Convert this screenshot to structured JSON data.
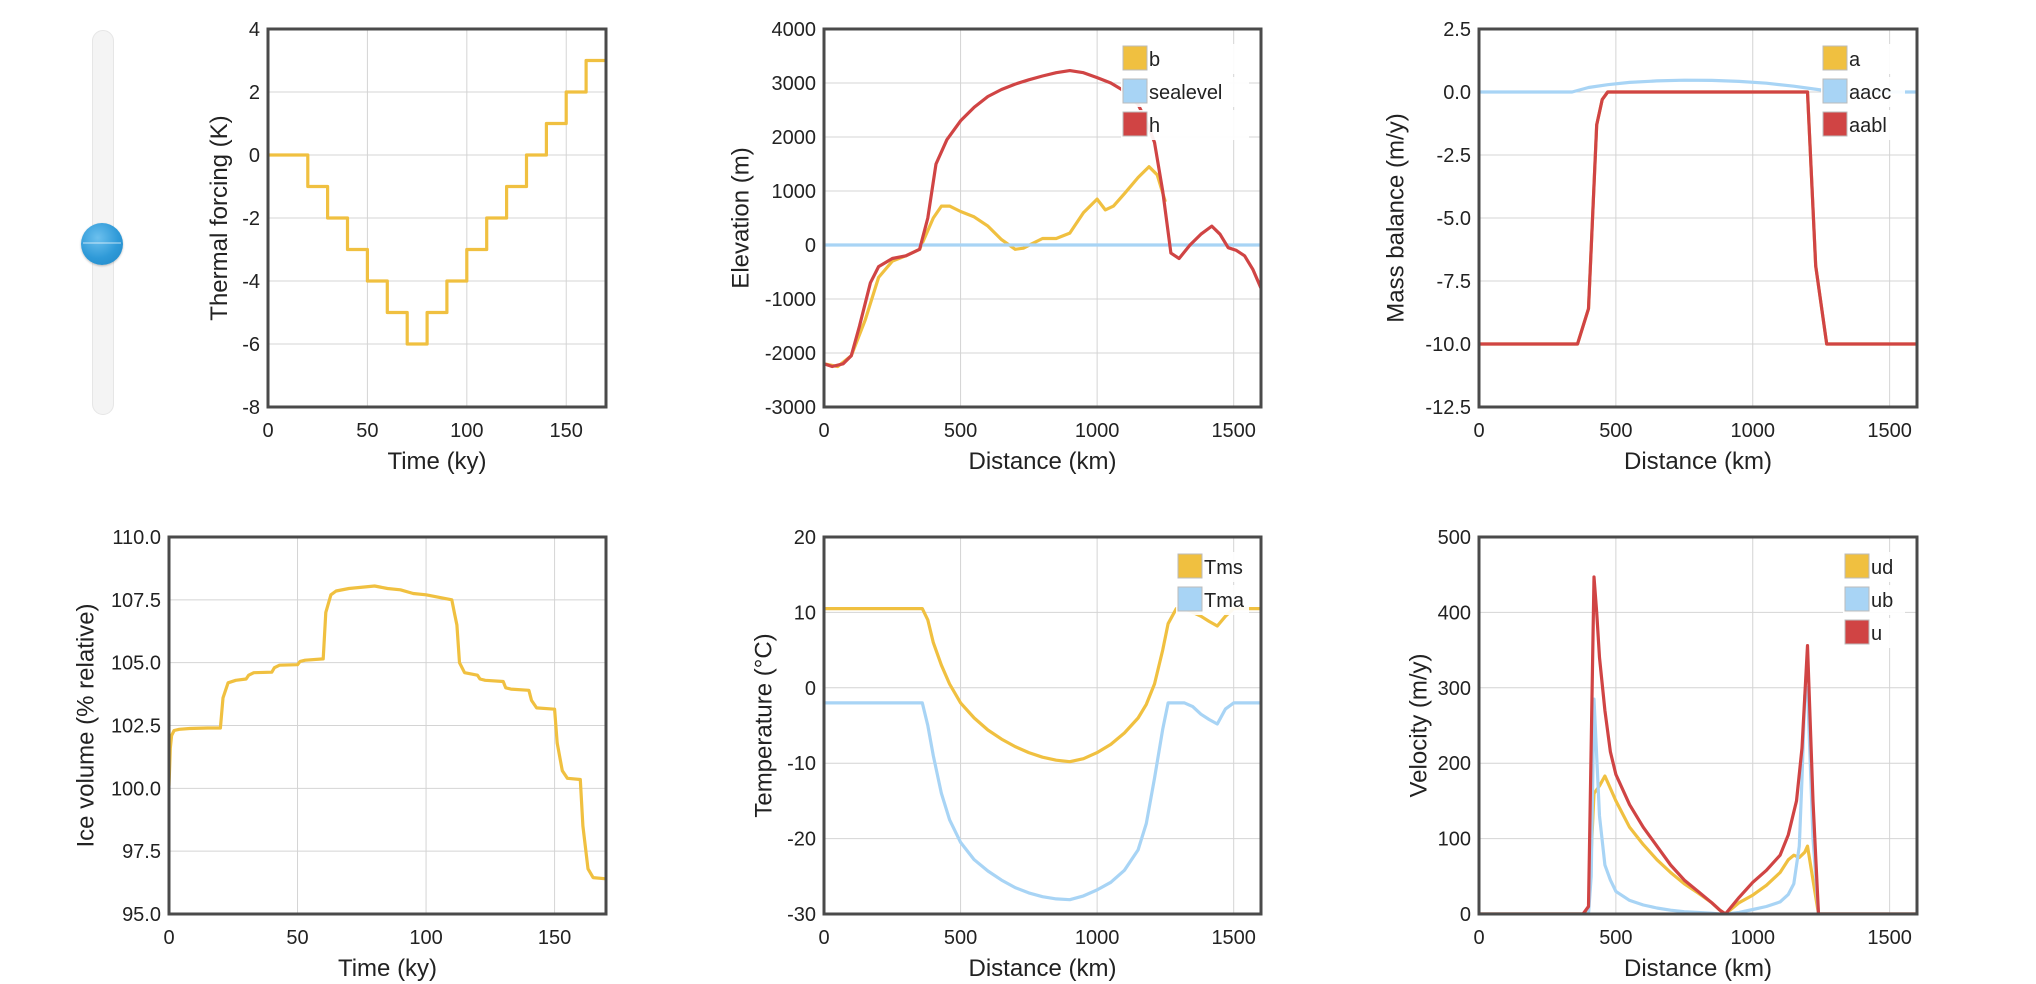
{
  "slider": {
    "value": 0.43
  },
  "chart_data": [
    {
      "type": "line",
      "xlabel": "Time (ky)",
      "ylabel": "Thermal forcing (K)",
      "xlim": [
        0,
        170
      ],
      "ylim": [
        -8,
        4
      ],
      "xticks": [
        0,
        50,
        100,
        150
      ],
      "yticks": [
        -8,
        -6,
        -4,
        -2,
        0,
        2,
        4
      ],
      "grid": true,
      "series": [
        {
          "name": "",
          "color": "#f0c040",
          "x": [
            0,
            20,
            20,
            30,
            30,
            40,
            40,
            50,
            50,
            60,
            60,
            70,
            70,
            80,
            80,
            90,
            90,
            100,
            100,
            110,
            110,
            120,
            120,
            130,
            130,
            140,
            140,
            150,
            150,
            160,
            160,
            170
          ],
          "y": [
            0,
            0,
            -1,
            -1,
            -2,
            -2,
            -3,
            -3,
            -4,
            -4,
            -5,
            -5,
            -6,
            -6,
            -5,
            -5,
            -4,
            -4,
            -3,
            -3,
            -2,
            -2,
            -1,
            -1,
            0,
            0,
            1,
            1,
            2,
            2,
            3,
            3
          ]
        }
      ]
    },
    {
      "type": "line",
      "xlabel": "Distance (km)",
      "ylabel": "Elevation (m)",
      "xlim": [
        0,
        1600
      ],
      "ylim": [
        -3000,
        4000
      ],
      "xticks": [
        0,
        500,
        1000,
        1500
      ],
      "yticks": [
        -3000,
        -2000,
        -1000,
        0,
        1000,
        2000,
        3000,
        4000
      ],
      "grid": true,
      "legend": "top-right",
      "series": [
        {
          "name": "b",
          "color": "#f0c040",
          "x": [
            0,
            50,
            100,
            150,
            200,
            250,
            300,
            350,
            400,
            430,
            460,
            500,
            550,
            600,
            650,
            700,
            730,
            760,
            800,
            850,
            900,
            950,
            1000,
            1030,
            1060,
            1100,
            1150,
            1190,
            1220,
            1250
          ],
          "y": [
            -2200,
            -2250,
            -2050,
            -1400,
            -600,
            -300,
            -200,
            -80,
            500,
            720,
            720,
            620,
            520,
            350,
            100,
            -80,
            -60,
            20,
            120,
            120,
            220,
            600,
            850,
            650,
            720,
            950,
            1250,
            1450,
            1300,
            800
          ]
        },
        {
          "name": "sealevel",
          "color": "#a8d4f5",
          "x": [
            0,
            1600
          ],
          "y": [
            0,
            0
          ]
        },
        {
          "name": "h",
          "color": "#d04444",
          "x": [
            0,
            30,
            70,
            100,
            130,
            170,
            200,
            250,
            300,
            350,
            380,
            410,
            450,
            500,
            550,
            600,
            650,
            700,
            750,
            800,
            850,
            900,
            950,
            1000,
            1050,
            1100,
            1150,
            1180,
            1210,
            1240,
            1270,
            1300,
            1340,
            1380,
            1420,
            1450,
            1480,
            1510,
            1540,
            1570,
            1600
          ],
          "y": [
            -2200,
            -2250,
            -2200,
            -2050,
            -1500,
            -700,
            -400,
            -250,
            -200,
            -80,
            500,
            1500,
            1950,
            2300,
            2550,
            2750,
            2880,
            2980,
            3060,
            3130,
            3190,
            3230,
            3190,
            3100,
            3000,
            2850,
            2600,
            2300,
            1900,
            1000,
            -150,
            -250,
            0,
            200,
            350,
            200,
            -50,
            -100,
            -200,
            -450,
            -800
          ]
        }
      ]
    },
    {
      "type": "line",
      "xlabel": "Distance (km)",
      "ylabel": "Mass balance (m/y)",
      "xlim": [
        0,
        1600
      ],
      "ylim": [
        -12.5,
        2.5
      ],
      "xticks": [
        0,
        500,
        1000,
        1500
      ],
      "yticks": [
        -12.5,
        -10.0,
        -7.5,
        -5.0,
        -2.5,
        0.0,
        2.5
      ],
      "grid": true,
      "legend": "top-right",
      "series": [
        {
          "name": "a",
          "color": "#f0c040",
          "x": [
            0,
            360,
            400,
            430,
            450,
            470,
            500,
            1200,
            1230,
            1270,
            1600
          ],
          "y": [
            -10,
            -10,
            -8.6,
            -1.3,
            -0.3,
            0,
            0,
            0,
            -6.9,
            -10,
            -10
          ]
        },
        {
          "name": "aacc",
          "color": "#a8d4f5",
          "x": [
            0,
            340,
            400,
            470,
            550,
            650,
            750,
            850,
            950,
            1050,
            1150,
            1250,
            1350,
            1450,
            1500,
            1600
          ],
          "y": [
            0,
            0,
            0.18,
            0.29,
            0.38,
            0.44,
            0.47,
            0.46,
            0.42,
            0.35,
            0.23,
            0.08,
            0,
            0,
            0,
            0
          ]
        },
        {
          "name": "aabl",
          "color": "#d04444",
          "x": [
            0,
            360,
            400,
            430,
            450,
            470,
            500,
            1200,
            1230,
            1270,
            1600
          ],
          "y": [
            -10,
            -10,
            -8.6,
            -1.3,
            -0.3,
            0,
            0,
            0,
            -6.9,
            -10,
            -10
          ]
        }
      ]
    },
    {
      "type": "line",
      "xlabel": "Time (ky)",
      "ylabel": "Ice volume (% relative)",
      "xlim": [
        0,
        170
      ],
      "ylim": [
        95.0,
        110.0
      ],
      "xticks": [
        0,
        50,
        100,
        150
      ],
      "yticks": [
        95.0,
        97.5,
        100.0,
        102.5,
        105.0,
        107.5,
        110.0
      ],
      "grid": true,
      "series": [
        {
          "name": "",
          "color": "#f0c040",
          "x": [
            0,
            0.5,
            1,
            2,
            4,
            8,
            15,
            20,
            21,
            23,
            26,
            30,
            31,
            33,
            40,
            41,
            43,
            50,
            51,
            53,
            60,
            61,
            63,
            65,
            70,
            80,
            85,
            90,
            95,
            100,
            105,
            110,
            111,
            112,
            113,
            115,
            120,
            121,
            123,
            130,
            131,
            133,
            140,
            141,
            143,
            150,
            151,
            153,
            155,
            160,
            161,
            163,
            165,
            170
          ],
          "y": [
            100.1,
            101.6,
            102.1,
            102.3,
            102.35,
            102.38,
            102.4,
            102.4,
            103.6,
            104.2,
            104.3,
            104.35,
            104.5,
            104.6,
            104.62,
            104.8,
            104.9,
            104.92,
            105.05,
            105.1,
            105.15,
            107.0,
            107.7,
            107.85,
            107.95,
            108.05,
            107.95,
            107.9,
            107.75,
            107.7,
            107.6,
            107.5,
            107.0,
            106.5,
            105.0,
            104.6,
            104.5,
            104.35,
            104.3,
            104.25,
            104.0,
            103.95,
            103.9,
            103.5,
            103.2,
            103.15,
            101.8,
            100.7,
            100.4,
            100.35,
            98.5,
            96.8,
            96.45,
            96.4
          ]
        }
      ]
    },
    {
      "type": "line",
      "xlabel": "Distance (km)",
      "ylabel": "Temperature (°C)",
      "xlim": [
        0,
        1600
      ],
      "ylim": [
        -30,
        20
      ],
      "xticks": [
        0,
        500,
        1000,
        1500
      ],
      "yticks": [
        -30,
        -20,
        -10,
        0,
        10,
        20
      ],
      "grid": true,
      "legend": "top-right",
      "series": [
        {
          "name": "Tms",
          "color": "#f0c040",
          "x": [
            0,
            360,
            380,
            400,
            430,
            460,
            500,
            550,
            600,
            650,
            700,
            750,
            800,
            850,
            900,
            950,
            1000,
            1050,
            1100,
            1150,
            1180,
            1210,
            1240,
            1260,
            1290,
            1320,
            1350,
            1380,
            1410,
            1440,
            1470,
            1500,
            1530,
            1600
          ],
          "y": [
            10.5,
            10.5,
            9,
            6,
            3,
            0.5,
            -2,
            -4,
            -5.6,
            -6.8,
            -7.8,
            -8.6,
            -9.2,
            -9.6,
            -9.8,
            -9.4,
            -8.6,
            -7.5,
            -6,
            -4,
            -2.2,
            0.5,
            5,
            8.5,
            10.5,
            10.5,
            10,
            9.5,
            8.8,
            8.2,
            9.5,
            10.5,
            10.5,
            10.5
          ]
        },
        {
          "name": "Tma",
          "color": "#a8d4f5",
          "x": [
            0,
            360,
            380,
            400,
            430,
            460,
            500,
            550,
            600,
            650,
            700,
            750,
            800,
            850,
            900,
            950,
            1000,
            1050,
            1100,
            1150,
            1180,
            1210,
            1240,
            1260,
            1290,
            1320,
            1350,
            1380,
            1410,
            1440,
            1470,
            1500,
            1530,
            1600
          ],
          "y": [
            -2,
            -2,
            -5,
            -9,
            -14,
            -17.5,
            -20.5,
            -22.8,
            -24.3,
            -25.5,
            -26.5,
            -27.2,
            -27.7,
            -28,
            -28.1,
            -27.6,
            -26.8,
            -25.8,
            -24.2,
            -21.5,
            -18,
            -12,
            -5.5,
            -2,
            -2,
            -2,
            -2.5,
            -3.5,
            -4.2,
            -4.8,
            -2.8,
            -2,
            -2,
            -2
          ]
        }
      ]
    },
    {
      "type": "line",
      "xlabel": "Distance (km)",
      "ylabel": "Velocity (m/y)",
      "xlim": [
        0,
        1600
      ],
      "ylim": [
        0,
        500
      ],
      "xticks": [
        0,
        500,
        1000,
        1500
      ],
      "yticks": [
        0,
        100,
        200,
        300,
        400,
        500
      ],
      "grid": true,
      "legend": "top-right",
      "series": [
        {
          "name": "ud",
          "color": "#f0c040",
          "x": [
            0,
            380,
            400,
            420,
            440,
            460,
            500,
            550,
            600,
            650,
            700,
            750,
            800,
            850,
            880,
            900,
            950,
            1000,
            1050,
            1100,
            1130,
            1150,
            1170,
            1190,
            1200,
            1240,
            1600
          ],
          "y": [
            0,
            0,
            5,
            160,
            170,
            183,
            150,
            115,
            92,
            72,
            55,
            40,
            28,
            15,
            5,
            0,
            15,
            25,
            38,
            55,
            72,
            78,
            75,
            82,
            90,
            0,
            0
          ]
        },
        {
          "name": "ub",
          "color": "#a8d4f5",
          "x": [
            0,
            400,
            410,
            420,
            440,
            460,
            480,
            500,
            550,
            600,
            650,
            700,
            750,
            800,
            850,
            880,
            900,
            950,
            1000,
            1050,
            1100,
            1130,
            1150,
            1170,
            1180,
            1190,
            1200,
            1220,
            1240,
            1600
          ],
          "y": [
            0,
            0,
            50,
            285,
            130,
            65,
            45,
            30,
            18,
            12,
            8,
            5,
            3,
            2,
            1,
            0,
            0,
            2,
            6,
            10,
            16,
            26,
            40,
            90,
            180,
            290,
            300,
            100,
            0,
            0
          ]
        },
        {
          "name": "u",
          "color": "#d04444",
          "x": [
            0,
            380,
            400,
            420,
            430,
            440,
            460,
            480,
            500,
            550,
            600,
            650,
            700,
            750,
            800,
            850,
            880,
            900,
            950,
            1000,
            1050,
            1100,
            1130,
            1160,
            1180,
            1200,
            1220,
            1240,
            1600
          ],
          "y": [
            0,
            0,
            10,
            447,
            400,
            340,
            270,
            215,
            185,
            145,
            115,
            90,
            65,
            45,
            30,
            15,
            5,
            0,
            22,
            42,
            58,
            78,
            105,
            150,
            220,
            356,
            150,
            0,
            0
          ]
        }
      ]
    }
  ]
}
